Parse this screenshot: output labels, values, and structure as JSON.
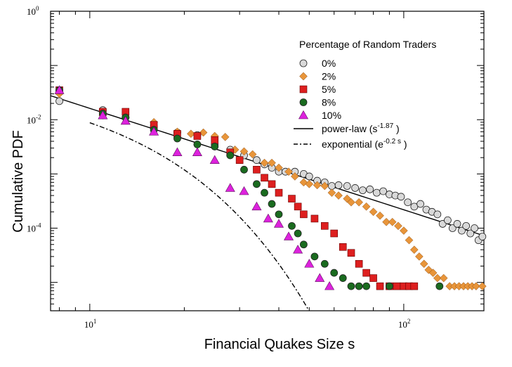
{
  "chart_data": {
    "type": "scatter",
    "xscale": "log",
    "yscale": "log",
    "xlim": [
      7.5,
      180
    ],
    "ylim": [
      3e-06,
      1
    ],
    "xlabel": "Financial Quakes Size  s",
    "ylabel": "Cumulative PDF",
    "x_ticks": [
      {
        "value": 10,
        "base": "10",
        "exp": "1"
      },
      {
        "value": 100,
        "base": "10",
        "exp": "2"
      }
    ],
    "y_ticks": [
      {
        "value": 1,
        "base": "10",
        "exp": "0"
      },
      {
        "value": 0.01,
        "base": "10",
        "exp": "-2"
      },
      {
        "value": 0.0001,
        "base": "10",
        "exp": "-4"
      }
    ],
    "legend_title": "Percentage of Random Traders",
    "series": [
      {
        "name": "0%",
        "marker": "circle",
        "color": "#d9d9d9",
        "points": [
          [
            8,
            0.022
          ],
          [
            11,
            0.015
          ],
          [
            13,
            0.011
          ],
          [
            16,
            0.0075
          ],
          [
            19,
            0.0058
          ],
          [
            22,
            0.0052
          ],
          [
            25,
            0.0035
          ],
          [
            28,
            0.0028
          ],
          [
            31,
            0.0022
          ],
          [
            34,
            0.0018
          ],
          [
            36,
            0.0015
          ],
          [
            38,
            0.0013
          ],
          [
            40,
            0.0011
          ],
          [
            42,
            0.0011
          ],
          [
            45,
            0.0011
          ],
          [
            48,
            0.001
          ],
          [
            50,
            0.0009
          ],
          [
            53,
            0.00075
          ],
          [
            56,
            0.0007
          ],
          [
            59,
            0.0006
          ],
          [
            62,
            0.00062
          ],
          [
            66,
            0.0006
          ],
          [
            70,
            0.00055
          ],
          [
            74,
            0.0005
          ],
          [
            78,
            0.00052
          ],
          [
            82,
            0.00045
          ],
          [
            86,
            0.00048
          ],
          [
            90,
            0.00042
          ],
          [
            94,
            0.0004
          ],
          [
            98,
            0.00038
          ],
          [
            103,
            0.0003
          ],
          [
            108,
            0.00025
          ],
          [
            113,
            0.00028
          ],
          [
            118,
            0.00022
          ],
          [
            123,
            0.0002
          ],
          [
            128,
            0.00018
          ],
          [
            133,
            0.00012
          ],
          [
            138,
            0.00014
          ],
          [
            143,
            0.0001
          ],
          [
            148,
            0.00012
          ],
          [
            153,
            9e-05
          ],
          [
            158,
            0.00011
          ],
          [
            163,
            8e-05
          ],
          [
            168,
            0.0001
          ],
          [
            173,
            6e-05
          ],
          [
            178,
            7e-05
          ]
        ]
      },
      {
        "name": "2%",
        "marker": "diamond",
        "color": "#e8953a",
        "points": [
          [
            8,
            0.03
          ],
          [
            11,
            0.012
          ],
          [
            13,
            0.011
          ],
          [
            16,
            0.009
          ],
          [
            19,
            0.006
          ],
          [
            21,
            0.0055
          ],
          [
            23,
            0.0058
          ],
          [
            25,
            0.005
          ],
          [
            27,
            0.0048
          ],
          [
            29,
            0.0028
          ],
          [
            31,
            0.0026
          ],
          [
            33,
            0.0023
          ],
          [
            36,
            0.0016
          ],
          [
            38,
            0.0016
          ],
          [
            40,
            0.0013
          ],
          [
            43,
            0.0011
          ],
          [
            45,
            0.0009
          ],
          [
            48,
            0.0007
          ],
          [
            50,
            0.00065
          ],
          [
            53,
            0.00062
          ],
          [
            56,
            0.0006
          ],
          [
            59,
            0.00045
          ],
          [
            62,
            0.0004
          ],
          [
            66,
            0.00035
          ],
          [
            68,
            0.0003
          ],
          [
            72,
            0.0003
          ],
          [
            76,
            0.00025
          ],
          [
            80,
            0.0002
          ],
          [
            84,
            0.00017
          ],
          [
            88,
            0.00013
          ],
          [
            92,
            0.00013
          ],
          [
            96,
            0.00011
          ],
          [
            100,
            9e-05
          ],
          [
            104,
            6e-05
          ],
          [
            108,
            4e-05
          ],
          [
            112,
            3e-05
          ],
          [
            116,
            2.2e-05
          ],
          [
            120,
            1.7e-05
          ],
          [
            124,
            1.5e-05
          ],
          [
            128,
            1.2e-05
          ],
          [
            134,
            1.2e-05
          ],
          [
            140,
            8.5e-06
          ],
          [
            145,
            8.5e-06
          ],
          [
            150,
            8.5e-06
          ],
          [
            155,
            8.5e-06
          ],
          [
            160,
            8.5e-06
          ],
          [
            165,
            8.5e-06
          ],
          [
            170,
            8.5e-06
          ],
          [
            178,
            8.5e-06
          ]
        ]
      },
      {
        "name": "5%",
        "marker": "square",
        "color": "#dd1f1f",
        "points": [
          [
            8,
            0.035
          ],
          [
            11,
            0.014
          ],
          [
            13,
            0.014
          ],
          [
            16,
            0.008
          ],
          [
            19,
            0.0055
          ],
          [
            22,
            0.005
          ],
          [
            25,
            0.0042
          ],
          [
            28,
            0.0025
          ],
          [
            30,
            0.0018
          ],
          [
            34,
            0.0012
          ],
          [
            36,
            0.00085
          ],
          [
            38,
            0.00065
          ],
          [
            40,
            0.00045
          ],
          [
            44,
            0.00035
          ],
          [
            46,
            0.00025
          ],
          [
            48,
            0.00018
          ],
          [
            52,
            0.00015
          ],
          [
            56,
            0.00011
          ],
          [
            60,
            8e-05
          ],
          [
            64,
            4.5e-05
          ],
          [
            68,
            3.5e-05
          ],
          [
            72,
            2.2e-05
          ],
          [
            76,
            1.5e-05
          ],
          [
            80,
            1.2e-05
          ],
          [
            84,
            8.5e-06
          ],
          [
            90,
            8.5e-06
          ],
          [
            95,
            8.5e-06
          ],
          [
            100,
            8.5e-06
          ],
          [
            104,
            8.5e-06
          ],
          [
            108,
            8.5e-06
          ]
        ]
      },
      {
        "name": "8%",
        "marker": "circle",
        "color": "#1a6b1f",
        "points": [
          [
            8,
            0.035
          ],
          [
            11,
            0.013
          ],
          [
            13,
            0.011
          ],
          [
            16,
            0.0065
          ],
          [
            19,
            0.0045
          ],
          [
            22,
            0.0035
          ],
          [
            25,
            0.0032
          ],
          [
            28,
            0.0022
          ],
          [
            31,
            0.0012
          ],
          [
            34,
            0.00065
          ],
          [
            36,
            0.00045
          ],
          [
            38,
            0.00028
          ],
          [
            40,
            0.00018
          ],
          [
            44,
            0.00011
          ],
          [
            46,
            8e-05
          ],
          [
            48,
            5e-05
          ],
          [
            52,
            3e-05
          ],
          [
            56,
            2.2e-05
          ],
          [
            60,
            1.5e-05
          ],
          [
            64,
            1.2e-05
          ],
          [
            68,
            8.5e-06
          ],
          [
            72,
            8.5e-06
          ],
          [
            76,
            8.5e-06
          ],
          [
            90,
            8.5e-06
          ],
          [
            130,
            8.5e-06
          ]
        ]
      },
      {
        "name": "10%",
        "marker": "triangle",
        "color": "#dd22dd",
        "points": [
          [
            8,
            0.035
          ],
          [
            11,
            0.012
          ],
          [
            13,
            0.0095
          ],
          [
            16,
            0.006
          ],
          [
            19,
            0.0025
          ],
          [
            22,
            0.0025
          ],
          [
            25,
            0.0018
          ],
          [
            28,
            0.00055
          ],
          [
            31,
            0.00048
          ],
          [
            34,
            0.00025
          ],
          [
            37,
            0.00015
          ],
          [
            40,
            0.00012
          ],
          [
            43,
            7e-05
          ],
          [
            46,
            4e-05
          ],
          [
            50,
            2.2e-05
          ],
          [
            54,
            1.2e-05
          ],
          [
            58,
            8.5e-06
          ]
        ]
      }
    ],
    "fits": [
      {
        "name": "power-law",
        "style": "solid",
        "label_formula": "(s",
        "label_exp": "-1.87",
        "label_close": ")",
        "exponent": -1.87,
        "prefactor": 1.2
      },
      {
        "name": "exponential",
        "style": "dashdot",
        "label_formula": "(e",
        "label_exp": "-0.2 s",
        "label_close": ")",
        "rate": 0.2,
        "prefactor": 0.065
      }
    ]
  }
}
